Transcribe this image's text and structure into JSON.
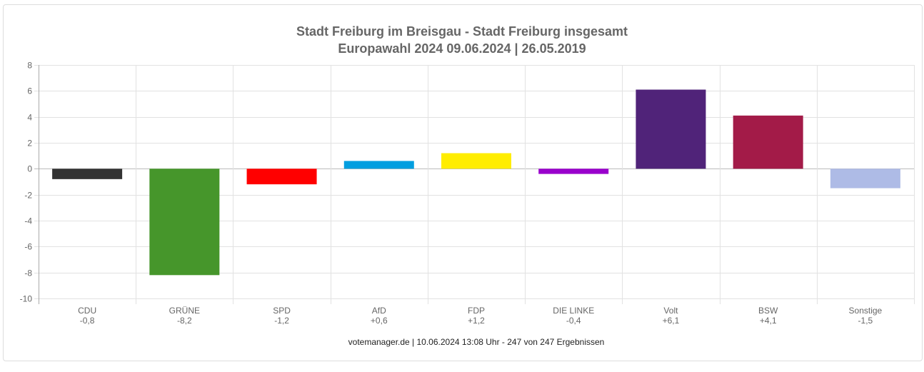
{
  "chart_data": {
    "type": "bar",
    "title": "Stadt Freiburg im Breisgau - Stadt Freiburg insgesamt",
    "subtitle": "Europawahl 2024 09.06.2024  | 26.05.2019",
    "categories": [
      "CDU",
      "GRÜNE",
      "SPD",
      "AfD",
      "FDP",
      "DIE LINKE",
      "Volt",
      "BSW",
      "Sonstige"
    ],
    "value_labels": [
      "-0,8",
      "-8,2",
      "-1,2",
      "+0,6",
      "+1,2",
      "-0,4",
      "+6,1",
      "+4,1",
      "-1,5"
    ],
    "values": [
      -0.8,
      -8.2,
      -1.2,
      0.6,
      1.2,
      -0.4,
      6.1,
      4.1,
      -1.5
    ],
    "colors": [
      "#333333",
      "#46962b",
      "#ff0000",
      "#009ee0",
      "#ffed00",
      "#9900cc",
      "#502379",
      "#a31b48",
      "#aebbe6"
    ],
    "ylim": [
      -10,
      8
    ],
    "yticks": [
      "8",
      "6",
      "4",
      "2",
      "0",
      "-2",
      "-4",
      "-6",
      "-8",
      "-10"
    ],
    "grid": true,
    "xlabel": "",
    "ylabel": "",
    "footer": "votemanager.de | 10.06.2024 13:08 Uhr - 247 von 247 Ergebnissen"
  }
}
